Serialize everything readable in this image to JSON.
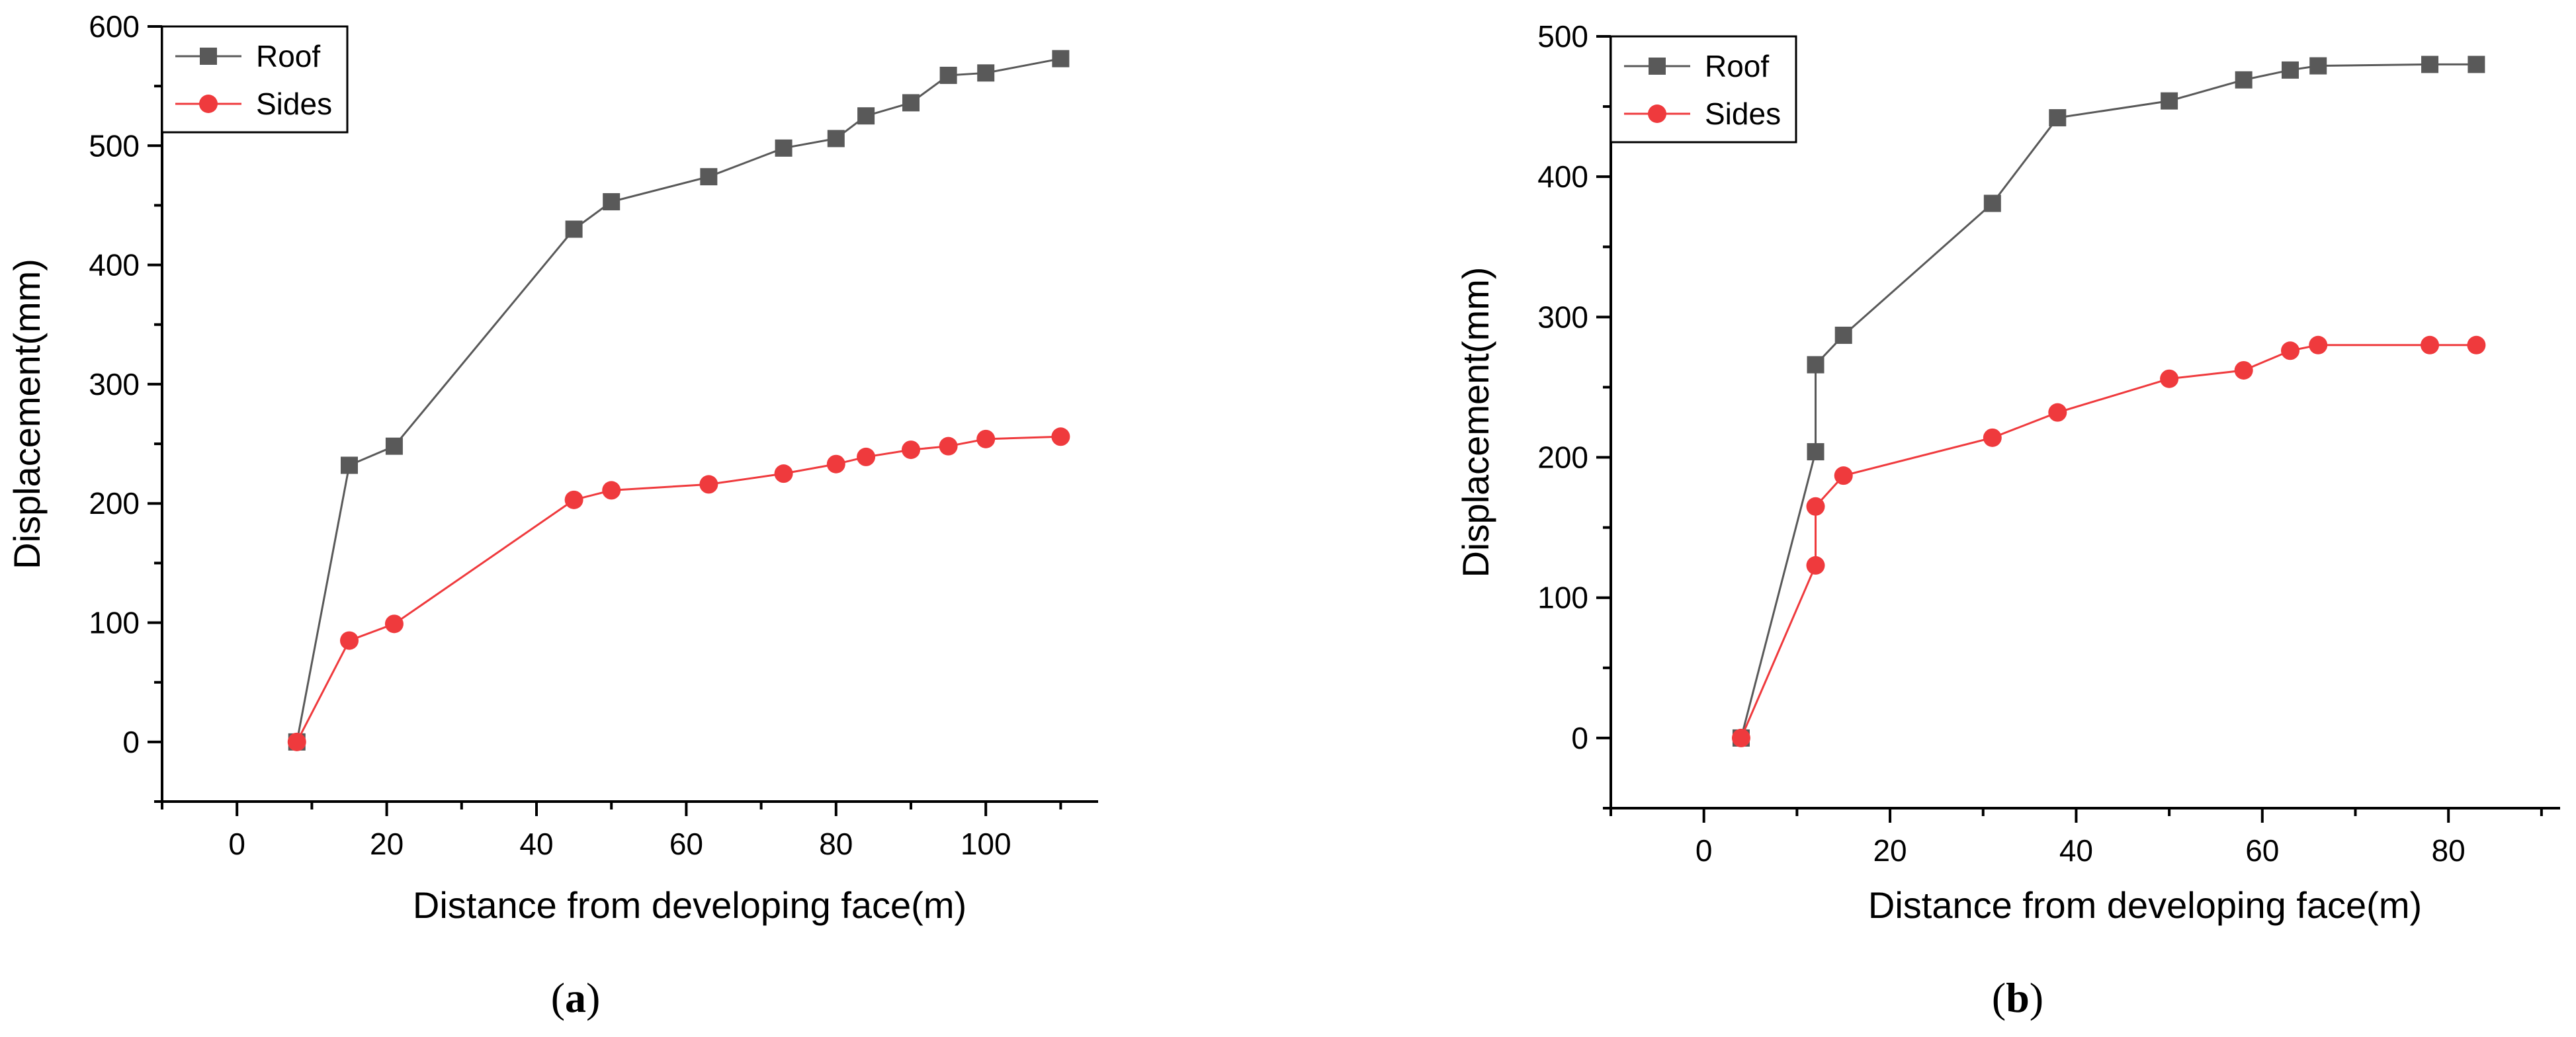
{
  "chart_data": [
    {
      "type": "line",
      "panel_label": "a",
      "xlabel": "Distance from developing face(m)",
      "ylabel": "Displacement(mm)",
      "xlim": [
        -10,
        115
      ],
      "ylim": [
        -50,
        600
      ],
      "xticks": [
        0,
        20,
        40,
        60,
        80,
        100
      ],
      "yticks": [
        0,
        100,
        200,
        300,
        400,
        500,
        600
      ],
      "legend": "top-left",
      "series": [
        {
          "name": "Roof",
          "color": "#595959",
          "marker": "square",
          "x": [
            8,
            15,
            21,
            45,
            50,
            63,
            73,
            80,
            84,
            90,
            95,
            100,
            110
          ],
          "y": [
            0,
            232,
            248,
            430,
            453,
            474,
            498,
            506,
            525,
            536,
            559,
            561,
            573
          ]
        },
        {
          "name": "Sides",
          "color": "#ef3a3d",
          "marker": "circle",
          "x": [
            8,
            15,
            21,
            45,
            50,
            63,
            73,
            80,
            84,
            90,
            95,
            100,
            110
          ],
          "y": [
            0,
            85,
            99,
            203,
            211,
            216,
            225,
            233,
            239,
            245,
            248,
            254,
            256
          ]
        }
      ]
    },
    {
      "type": "line",
      "panel_label": "b",
      "xlabel": "Distance from developing face(m)",
      "ylabel": "Displacement(mm)",
      "xlim": [
        -10,
        92
      ],
      "ylim": [
        -50,
        500
      ],
      "xticks": [
        0,
        20,
        40,
        60,
        80
      ],
      "yticks": [
        0,
        100,
        200,
        300,
        400,
        500
      ],
      "legend": "top-left",
      "series": [
        {
          "name": "Roof",
          "color": "#595959",
          "marker": "square",
          "x": [
            4,
            12,
            12,
            15,
            31,
            38,
            50,
            58,
            63,
            66,
            78,
            83
          ],
          "y": [
            0,
            204,
            266,
            287,
            381,
            442,
            454,
            469,
            476,
            479,
            480,
            480
          ]
        },
        {
          "name": "Sides",
          "color": "#ef3a3d",
          "marker": "circle",
          "x": [
            4,
            12,
            12,
            15,
            31,
            38,
            50,
            58,
            63,
            66,
            78,
            83
          ],
          "y": [
            0,
            123,
            165,
            187,
            214,
            232,
            256,
            262,
            276,
            280,
            280,
            280
          ]
        }
      ]
    }
  ]
}
